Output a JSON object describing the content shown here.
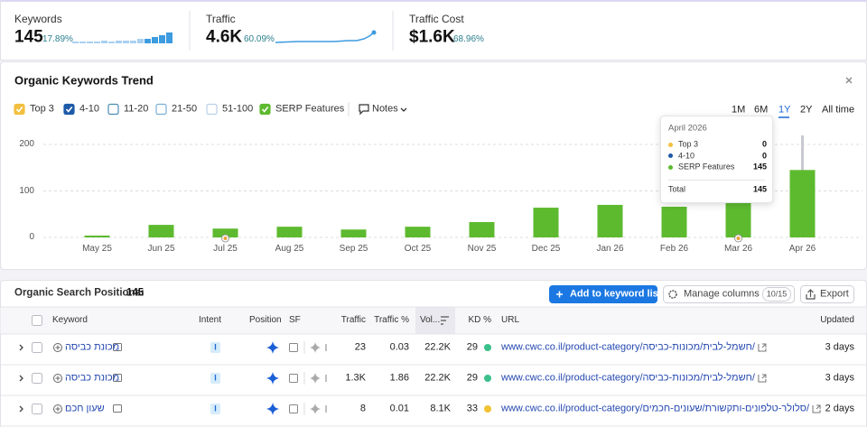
{
  "summary": [
    {
      "label": "Keywords",
      "value": "145",
      "change": "17.89%"
    },
    {
      "label": "Traffic",
      "value": "4.6K",
      "change": "60.09%"
    },
    {
      "label": "Traffic Cost",
      "value": "$1.6K",
      "change": "68.96%"
    }
  ],
  "trend": {
    "title": "Organic Keywords Trend",
    "filters": [
      {
        "label": "Top 3",
        "checked": true,
        "color": "#f2c03f"
      },
      {
        "label": "4-10",
        "checked": true,
        "color": "#1d5aa8"
      },
      {
        "label": "11-20",
        "checked": false,
        "color": "#4b8db3"
      },
      {
        "label": "21-50",
        "checked": false,
        "color": "#7aaed4"
      },
      {
        "label": "51-100",
        "checked": false,
        "color": "#b9cfe4"
      }
    ],
    "notes": "Notes",
    "periods": [
      {
        "label": "1M",
        "selected": false
      },
      {
        "label": "6M",
        "selected": false
      },
      {
        "label": "1Y",
        "selected": true
      },
      {
        "label": "2Y",
        "selected": false
      },
      {
        "label": "All time",
        "selected": false
      }
    ]
  },
  "chart_data": {
    "type": "bar",
    "categories": [
      "May 25",
      "Jun 25",
      "Jul 25",
      "Aug 25",
      "Sep 25",
      "Oct 25",
      "Nov 25",
      "Dec 25",
      "Jan 26",
      "Feb 26",
      "Mar 26",
      "Apr 26"
    ],
    "series": [
      {
        "name": "SERP Features",
        "color": "#5dba2f",
        "values": [
          4,
          27,
          19,
          23,
          17,
          23,
          33,
          64,
          70,
          66,
          74,
          145
        ]
      }
    ],
    "ylim": [
      0,
      200
    ],
    "yticks": [
      0,
      100,
      200
    ],
    "grid": true
  },
  "tooltip": {
    "title": "April 2026",
    "rows": [
      {
        "value": "0"
      },
      {
        "value": "0"
      },
      {
        "value": "145"
      }
    ],
    "total_label": "Total",
    "total": "145"
  },
  "table": {
    "title": "Organic Search Positions:",
    "count": "145",
    "buttons": {
      "add": "Add to keyword list",
      "manage": "Manage columns",
      "manage_badge": "10/15",
      "export": "Export"
    },
    "columns": [
      "Keyword",
      "Intent",
      "Position",
      "SF",
      "Traffic",
      "Traffic %",
      "Vol...",
      "KD %",
      "URL",
      "Updated"
    ],
    "rows": [
      {
        "keyword": "מכונת כביסה",
        "intent": "I",
        "traffic": "23",
        "traffic_pct": "0.03",
        "volume": "22.2K",
        "kd": "29",
        "kd_color": "#3cc08b",
        "url": "www.cwc.co.il/product-category/חשמל-לבית/מכונות-כביסה/",
        "updated": "3 days"
      },
      {
        "keyword": "מכונת כביסה",
        "intent": "I",
        "traffic": "1.3K",
        "traffic_pct": "1.86",
        "volume": "22.2K",
        "kd": "29",
        "kd_color": "#3cc08b",
        "url": "www.cwc.co.il/product-category/חשמל-לבית/מכונות-כביסה/",
        "updated": "3 days"
      },
      {
        "keyword": "שעון חכם",
        "intent": "I",
        "traffic": "8",
        "traffic_pct": "0.01",
        "volume": "8.1K",
        "kd": "33",
        "kd_color": "#f1c232",
        "url": "www.cwc.co.il/product-category/סלולר-טלפונים-ותקשורת/שעונים-חכמים/",
        "updated": "2 days"
      }
    ]
  }
}
